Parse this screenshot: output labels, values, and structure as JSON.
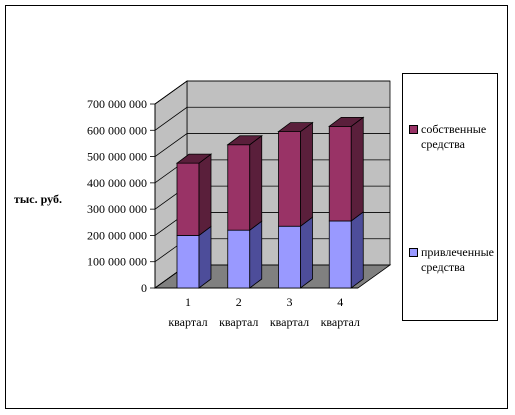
{
  "chart_data": {
    "type": "bar",
    "stacked": true,
    "three_d": true,
    "ylabel": "тыс. руб.",
    "ylim": [
      0,
      700000000
    ],
    "yticks": [
      "0",
      "100 000 000",
      "200 000 000",
      "300 000 000",
      "400 000 000",
      "500 000 000",
      "600 000 000",
      "700 000 000"
    ],
    "categories": [
      [
        "1",
        "квартал"
      ],
      [
        "2",
        "квартал"
      ],
      [
        "3",
        "квартал"
      ],
      [
        "4",
        "квартал"
      ]
    ],
    "series": [
      {
        "name": "привлеченные средства",
        "values": [
          200000000,
          220000000,
          235000000,
          255000000
        ],
        "color": "#9999ff",
        "side": "#4d4d9a"
      },
      {
        "name": "собственные средства",
        "values": [
          275000000,
          325000000,
          360000000,
          360000000
        ],
        "color": "#993366",
        "side": "#5a1f3b"
      }
    ],
    "legend": {
      "position": "right",
      "items": [
        {
          "label": "собственные средства",
          "color": "#993366"
        },
        {
          "label": "привлеченные средства",
          "color": "#9999ff"
        }
      ]
    },
    "grid": true
  }
}
